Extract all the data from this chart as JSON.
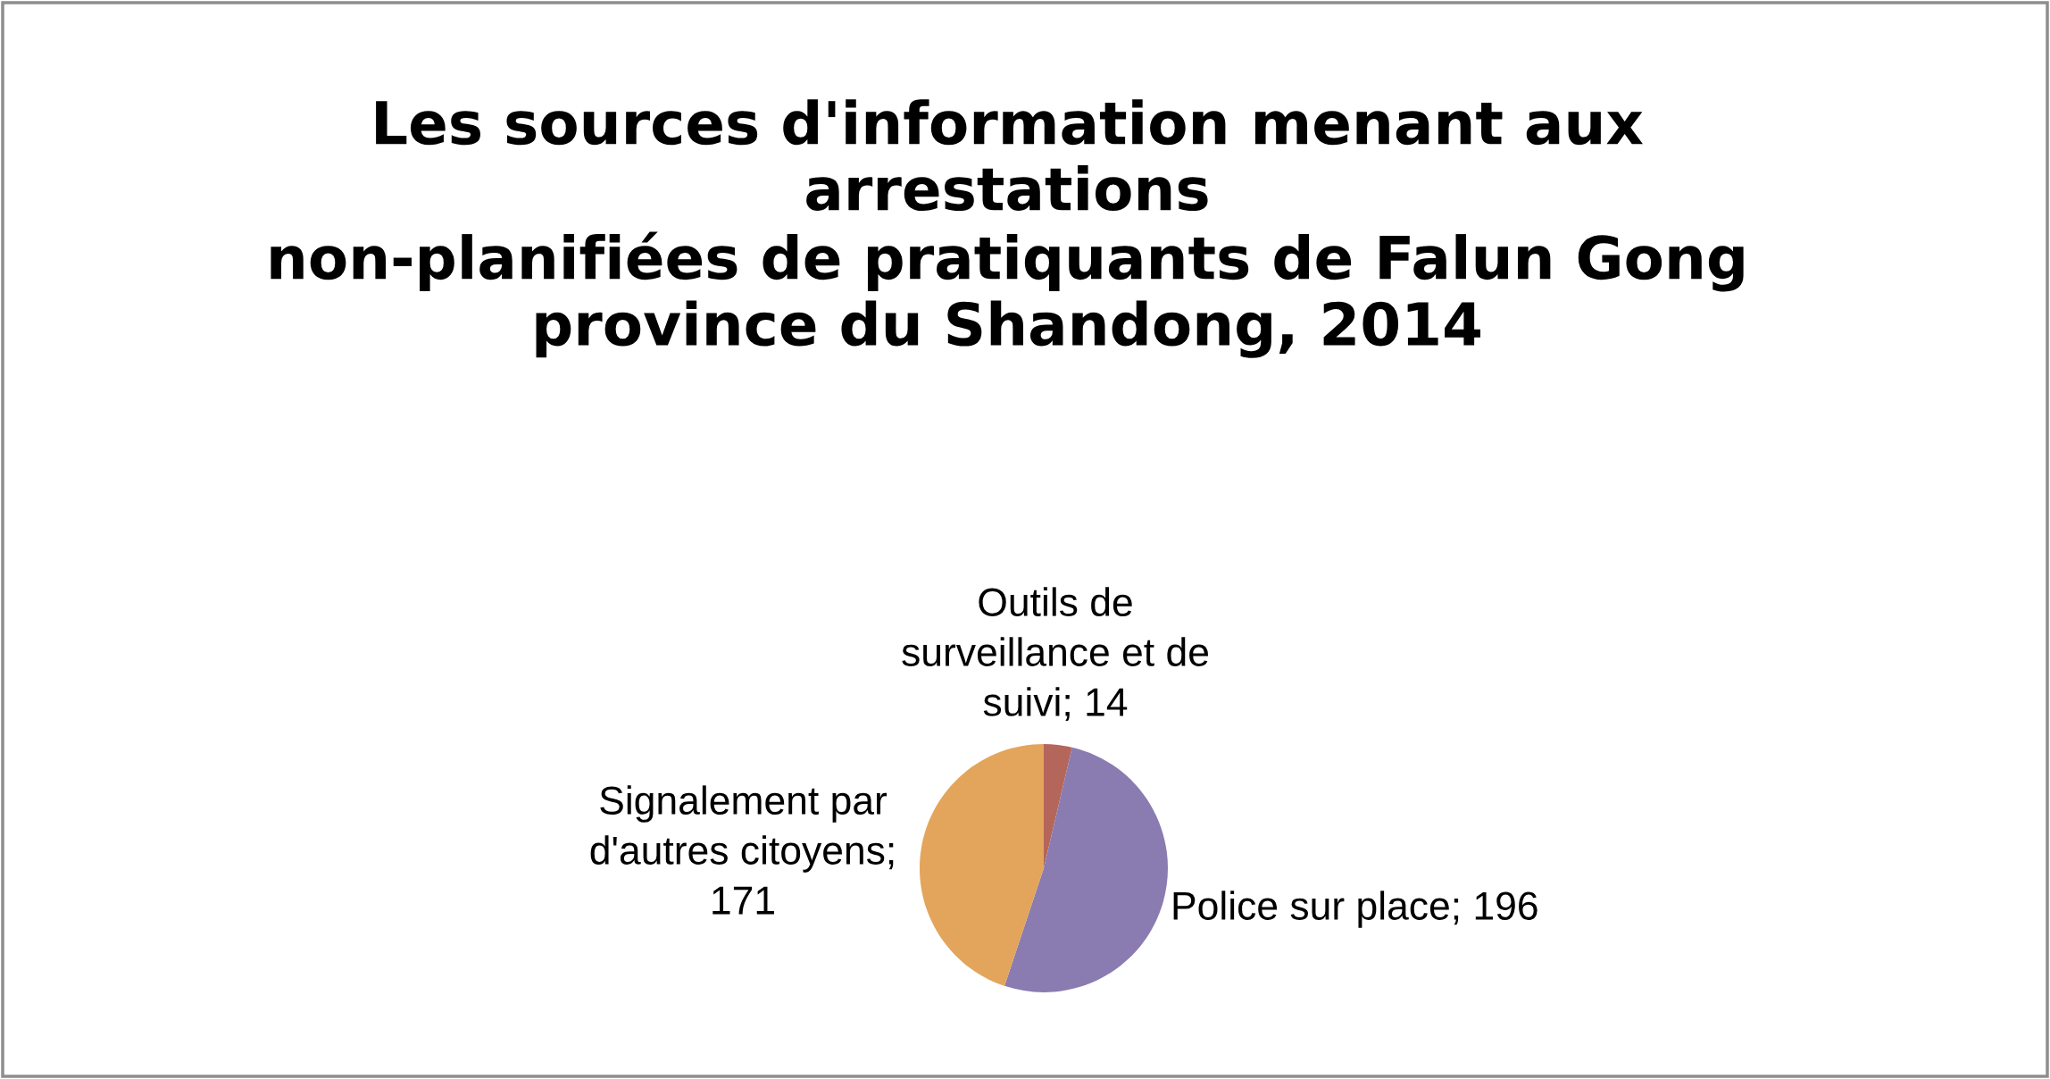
{
  "chart_data": {
    "type": "pie",
    "title": "Les sources d'information menant aux\narrestations\nnon-planifiées de pratiquants de Falun Gong\nprovince du Shandong, 2014",
    "categories": [
      "Outils de surveillance et de suivi; 14",
      "Police sur place; 196",
      "Signalement par d'autres citoyens; 171"
    ],
    "values": [
      14,
      196,
      171
    ],
    "colors": [
      "#b4665a",
      "#8a7bb0",
      "#e3a55b"
    ]
  }
}
